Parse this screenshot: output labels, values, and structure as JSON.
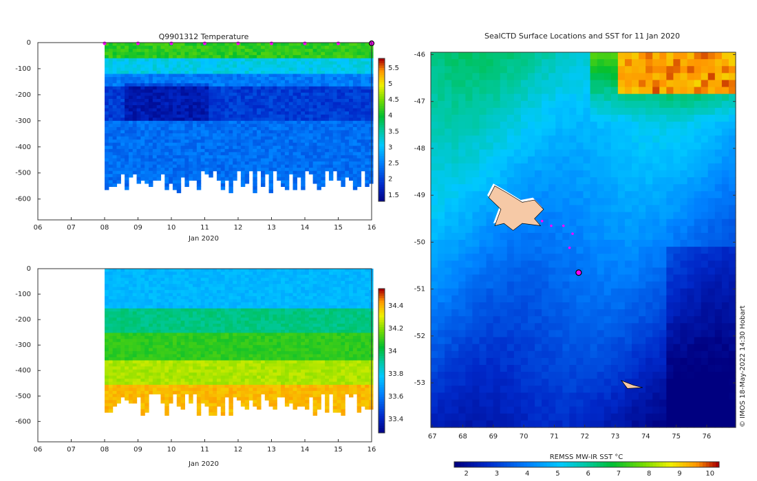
{
  "chart_data": [
    {
      "type": "heatmap",
      "title": "Q9901312  Temperature",
      "xlabel": "Jan 2020",
      "x_ticks": [
        "06",
        "07",
        "08",
        "09",
        "10",
        "11",
        "12",
        "13",
        "14",
        "15",
        "16"
      ],
      "y_ticks": [
        "0",
        "-100",
        "-200",
        "-300",
        "-400",
        "-500",
        "-600"
      ],
      "xlim": [
        6,
        16
      ],
      "ylim": [
        -680,
        0
      ],
      "colorbar": {
        "ticks": [
          "1.5",
          "2",
          "2.5",
          "3",
          "3.5",
          "4",
          "4.5",
          "5",
          "5.5"
        ],
        "range": [
          1.3,
          5.8
        ]
      },
      "profile_days": [
        8.0,
        9.0,
        10.0,
        11.0,
        12.0,
        13.0,
        14.0,
        15.0
      ],
      "current_day": 16.0,
      "layers": [
        {
          "from": 0,
          "to": -60,
          "value": 4.2
        },
        {
          "from": -60,
          "to": -110,
          "value": 3.2
        },
        {
          "from": -110,
          "to": -160,
          "value": 2.5
        },
        {
          "from": -160,
          "to": -300,
          "value": 2.0
        },
        {
          "from": -300,
          "to": -600,
          "value": 2.4
        }
      ]
    },
    {
      "type": "heatmap",
      "title": "",
      "xlabel": "Jan 2020",
      "x_ticks": [
        "06",
        "07",
        "08",
        "09",
        "10",
        "11",
        "12",
        "13",
        "14",
        "15",
        "16"
      ],
      "y_ticks": [
        "0",
        "-100",
        "-200",
        "-300",
        "-400",
        "-500",
        "-600"
      ],
      "xlim": [
        6,
        16
      ],
      "ylim": [
        -680,
        0
      ],
      "colorbar": {
        "ticks": [
          "33.4",
          "33.6",
          "33.8",
          "34",
          "34.2",
          "34.4"
        ],
        "range": [
          33.28,
          34.55
        ]
      },
      "layers": [
        {
          "from": 0,
          "to": -150,
          "value": 33.75
        },
        {
          "from": -150,
          "to": -250,
          "value": 33.95
        },
        {
          "from": -250,
          "to": -350,
          "value": 34.1
        },
        {
          "from": -350,
          "to": -450,
          "value": 34.25
        },
        {
          "from": -450,
          "to": -600,
          "value": 34.4
        }
      ]
    },
    {
      "type": "heatmap",
      "title": "SealCTD Surface Locations and SST for 11 Jan 2020",
      "x_ticks": [
        "67",
        "68",
        "69",
        "70",
        "71",
        "72",
        "73",
        "74",
        "75",
        "76"
      ],
      "y_ticks": [
        "-46",
        "-47",
        "-48",
        "-49",
        "-50",
        "-51",
        "-52",
        "-53"
      ],
      "xlim": [
        66.95,
        76.95
      ],
      "ylim": [
        -53.95,
        -45.95
      ],
      "colorbar": {
        "label": "REMSS MW-IR SST °C",
        "ticks": [
          "2",
          "3",
          "4",
          "5",
          "6",
          "7",
          "8",
          "9",
          "10"
        ],
        "range": [
          1.6,
          10.3
        ]
      },
      "track": [
        {
          "lon": 70.6,
          "lat": -49.55
        },
        {
          "lon": 70.9,
          "lat": -49.65
        },
        {
          "lon": 71.3,
          "lat": -49.65
        },
        {
          "lon": 71.6,
          "lat": -49.82
        },
        {
          "lon": 71.5,
          "lat": -50.12
        }
      ],
      "current_position": {
        "lon": 71.8,
        "lat": -50.65
      },
      "sst_note": "cold south-east, warm north-east"
    }
  ],
  "credit": "© IMOS 18-May-2022 14:30 Hobart"
}
